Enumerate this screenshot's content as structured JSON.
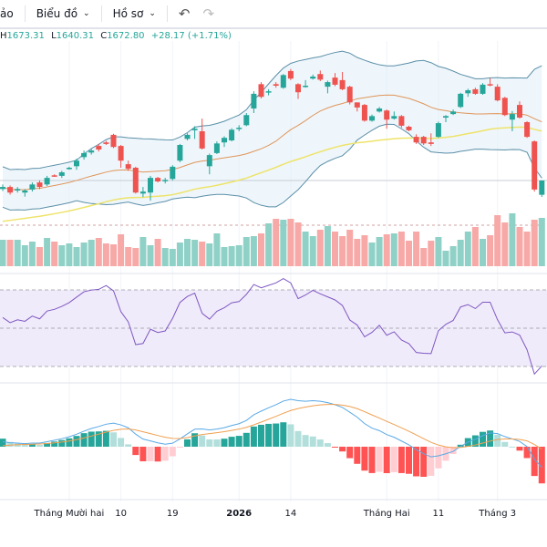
{
  "toolbar": {
    "cut_item": "ảo",
    "chart_menu": "Biểu đồ",
    "profile_menu": "Hồ sơ",
    "undo_icon": "undo-icon",
    "redo_icon": "redo-icon"
  },
  "legend": {
    "h_label": "H",
    "h_value": "1673.31",
    "l_label": "L",
    "l_value": "1640.31",
    "c_label": "C",
    "c_value": "1672.80",
    "change": "+28.17 (+1.71%)"
  },
  "colors": {
    "up": "#26a69a",
    "down": "#ef5350",
    "bb": "#5b8fa8",
    "basis": "#e0955a",
    "ma": "#eee36a",
    "rsi": "#7e57c2",
    "macd": "#5aa9e6",
    "signal": "#f0a050"
  },
  "chart_data": {
    "type": "candlestick",
    "last_price": 1672.8,
    "x_ticks": [
      {
        "index": 9,
        "label": "Tháng Mười hai",
        "bold": false
      },
      {
        "index": 16,
        "label": "10",
        "bold": false
      },
      {
        "index": 23,
        "label": "19",
        "bold": false
      },
      {
        "index": 32,
        "label": "2026",
        "bold": true
      },
      {
        "index": 39,
        "label": "14",
        "bold": false
      },
      {
        "index": 52,
        "label": "Tháng Hai",
        "bold": false
      },
      {
        "index": 59,
        "label": "11",
        "bold": false
      },
      {
        "index": 67,
        "label": "Tháng 3",
        "bold": false
      }
    ],
    "ohlc": [
      [
        1656,
        1665,
        1652,
        1660
      ],
      [
        1660,
        1663,
        1645,
        1649
      ],
      [
        1653,
        1660,
        1649,
        1656
      ],
      [
        1649,
        1656,
        1641,
        1653
      ],
      [
        1655,
        1669,
        1651,
        1665
      ],
      [
        1669,
        1673,
        1656,
        1660
      ],
      [
        1665,
        1682,
        1662,
        1678
      ],
      [
        1683,
        1685,
        1680,
        1682
      ],
      [
        1682,
        1692,
        1678,
        1689
      ],
      [
        1696,
        1700,
        1694,
        1698
      ],
      [
        1701,
        1716,
        1694,
        1712
      ],
      [
        1719,
        1732,
        1714,
        1727
      ],
      [
        1728,
        1735,
        1724,
        1732
      ],
      [
        1741,
        1745,
        1730,
        1734
      ],
      [
        1748,
        1751,
        1743,
        1745
      ],
      [
        1763,
        1765,
        1737,
        1739
      ],
      [
        1741,
        1743,
        1698,
        1712
      ],
      [
        1705,
        1712,
        1692,
        1696
      ],
      [
        1698,
        1700,
        1647,
        1649
      ],
      [
        1647,
        1660,
        1640,
        1651
      ],
      [
        1649,
        1682,
        1633,
        1678
      ],
      [
        1678,
        1680,
        1669,
        1671
      ],
      [
        1673,
        1678,
        1667,
        1674
      ],
      [
        1676,
        1703,
        1673,
        1700
      ],
      [
        1712,
        1745,
        1709,
        1743
      ],
      [
        1755,
        1766,
        1752,
        1763
      ],
      [
        1772,
        1780,
        1755,
        1775
      ],
      [
        1770,
        1795,
        1734,
        1736
      ],
      [
        1701,
        1726,
        1685,
        1723
      ],
      [
        1727,
        1750,
        1725,
        1746
      ],
      [
        1748,
        1760,
        1739,
        1757
      ],
      [
        1752,
        1776,
        1750,
        1773
      ],
      [
        1775,
        1782,
        1770,
        1777
      ],
      [
        1782,
        1806,
        1780,
        1802
      ],
      [
        1815,
        1849,
        1806,
        1844
      ],
      [
        1863,
        1867,
        1835,
        1838
      ],
      [
        1847,
        1853,
        1841,
        1849
      ],
      [
        1863,
        1867,
        1856,
        1860
      ],
      [
        1856,
        1883,
        1854,
        1881
      ],
      [
        1889,
        1893,
        1871,
        1874
      ],
      [
        1863,
        1865,
        1834,
        1847
      ],
      [
        1858,
        1871,
        1856,
        1860
      ],
      [
        1874,
        1882,
        1872,
        1878
      ],
      [
        1883,
        1890,
        1869,
        1872
      ],
      [
        1858,
        1870,
        1845,
        1867
      ],
      [
        1876,
        1885,
        1859,
        1862
      ],
      [
        1871,
        1887,
        1851,
        1853
      ],
      [
        1858,
        1860,
        1823,
        1827
      ],
      [
        1827,
        1827,
        1809,
        1817
      ],
      [
        1822,
        1824,
        1789,
        1791
      ],
      [
        1791,
        1803,
        1789,
        1800
      ],
      [
        1809,
        1818,
        1807,
        1815
      ],
      [
        1811,
        1813,
        1775,
        1793
      ],
      [
        1795,
        1809,
        1793,
        1800
      ],
      [
        1800,
        1802,
        1777,
        1781
      ],
      [
        1779,
        1781,
        1770,
        1772
      ],
      [
        1759,
        1764,
        1745,
        1748
      ],
      [
        1759,
        1761,
        1743,
        1746
      ],
      [
        1748,
        1766,
        1741,
        1745
      ],
      [
        1759,
        1789,
        1757,
        1786
      ],
      [
        1797,
        1802,
        1788,
        1800
      ],
      [
        1804,
        1813,
        1802,
        1809
      ],
      [
        1818,
        1846,
        1816,
        1844
      ],
      [
        1845,
        1854,
        1838,
        1851
      ],
      [
        1853,
        1856,
        1842,
        1844
      ],
      [
        1844,
        1865,
        1842,
        1862
      ],
      [
        1863,
        1875,
        1859,
        1862
      ],
      [
        1858,
        1863,
        1829,
        1831
      ],
      [
        1836,
        1838,
        1800,
        1802
      ],
      [
        1793,
        1810,
        1770,
        1804
      ],
      [
        1822,
        1829,
        1795,
        1797
      ],
      [
        1788,
        1790,
        1757,
        1759
      ],
      [
        1750,
        1752,
        1651,
        1655
      ],
      [
        1644.63,
        1673.31,
        1640.31,
        1672.8
      ]
    ],
    "volume": [
      870,
      870,
      870,
      690,
      810,
      630,
      930,
      810,
      690,
      750,
      630,
      780,
      870,
      930,
      750,
      720,
      1050,
      630,
      600,
      960,
      690,
      900,
      600,
      570,
      780,
      900,
      870,
      810,
      750,
      1080,
      630,
      660,
      690,
      960,
      990,
      1080,
      1410,
      1560,
      1530,
      1560,
      1440,
      1140,
      990,
      1200,
      1320,
      1140,
      990,
      1200,
      900,
      1020,
      780,
      960,
      1050,
      1080,
      1140,
      840,
      1140,
      600,
      840,
      960,
      510,
      660,
      870,
      1140,
      1290,
      900,
      1020,
      1680,
      1440,
      1740,
      1290,
      1140,
      1530,
      1590
    ]
  }
}
